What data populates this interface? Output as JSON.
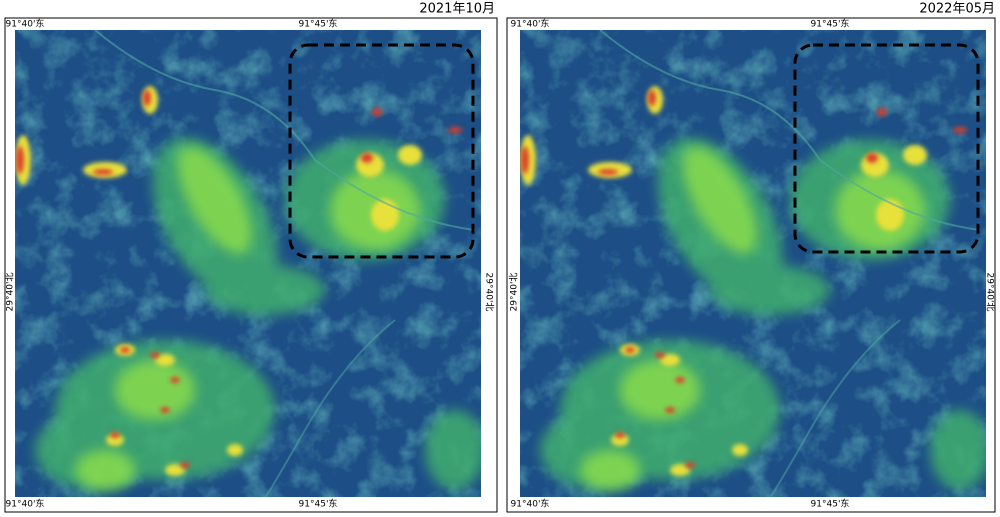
{
  "panels": [
    {
      "date": "2021年10月",
      "top_labels": [
        "91°40'东",
        "91°45'东"
      ],
      "bottom_labels": [
        "91°40'东",
        "91°45'东"
      ],
      "left_label": "29°40'北",
      "right_label": "29°40'北"
    },
    {
      "date": "2022年05月",
      "top_labels": [
        "91°40'东",
        "91°45'东"
      ],
      "bottom_labels": [
        "91°40'东",
        "91°45'东"
      ],
      "left_label": "29°40'北",
      "right_label": "29°40'北"
    }
  ]
}
